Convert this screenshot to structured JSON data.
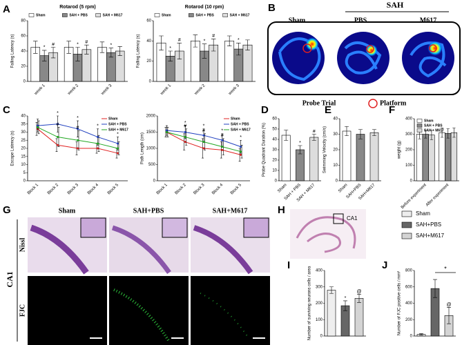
{
  "panel_labels": [
    "A",
    "B",
    "C",
    "D",
    "E",
    "F",
    "G",
    "H",
    "I",
    "J"
  ],
  "maze": {
    "group_title": "SAH",
    "groups": [
      "Sham",
      "PBS",
      "M617"
    ],
    "caption": "Probe Trial",
    "legend": "Platform"
  },
  "histology": {
    "columns": [
      "Sham",
      "SAH+PBS",
      "SAH+M617"
    ],
    "region": "CA1",
    "stains": [
      "Nissl",
      "FJC"
    ],
    "inset_label": "CA1"
  },
  "group_legend": {
    "labels": [
      "Sham",
      "SAH+PBS",
      "SAH+M617"
    ],
    "colors": [
      "#eeeeee",
      "#666666",
      "#d4d4d4"
    ]
  },
  "chart_data": [
    {
      "type": "bar",
      "title": "Rotarod (5 rpm)",
      "y_label": "Falling Latency (s)",
      "categories": [
        "week 1",
        "week 2",
        "week 3"
      ],
      "ylim": [
        0,
        80
      ],
      "yticks": [
        0,
        20,
        40,
        60,
        80
      ],
      "legend": "top",
      "rotate_labels": true,
      "series": [
        {
          "name": "Sham",
          "color": "#ffffff",
          "values": [
            45,
            45,
            45
          ],
          "errors": [
            8,
            8,
            7
          ],
          "markers": [
            null,
            null,
            null
          ]
        },
        {
          "name": "SAH + PBS",
          "color": "#888888",
          "values": [
            34,
            36,
            38
          ],
          "errors": [
            7,
            9,
            6
          ],
          "markers": [
            "*",
            "*",
            "*"
          ]
        },
        {
          "name": "SAH + M617",
          "color": "#dddddd",
          "values": [
            38,
            42,
            40
          ],
          "errors": [
            7,
            6,
            6
          ],
          "markers": [
            "#",
            "#",
            null
          ]
        }
      ]
    },
    {
      "type": "bar",
      "title": "Rotarod (10 rpm)",
      "y_label": "Falling Latency (s)",
      "categories": [
        "week 1",
        "week 2",
        "week 3"
      ],
      "ylim": [
        0,
        60
      ],
      "yticks": [
        0,
        20,
        40,
        60
      ],
      "legend": "top",
      "rotate_labels": true,
      "series": [
        {
          "name": "Sham",
          "color": "#ffffff",
          "values": [
            38,
            40,
            40
          ],
          "errors": [
            7,
            6,
            5
          ],
          "markers": [
            null,
            null,
            null
          ]
        },
        {
          "name": "SAH + PBS",
          "color": "#888888",
          "values": [
            25,
            30,
            32
          ],
          "errors": [
            5,
            7,
            6
          ],
          "markers": [
            "*",
            "*",
            "*"
          ]
        },
        {
          "name": "SAH + M617",
          "color": "#dddddd",
          "values": [
            30,
            36,
            36
          ],
          "errors": [
            8,
            6,
            5
          ],
          "markers": [
            "#",
            "#",
            null
          ]
        }
      ]
    },
    {
      "type": "line",
      "y_label": "Escape Latency (s)",
      "categories": [
        "Block 1",
        "Block 2",
        "Block 3",
        "Block 4",
        "Block 5"
      ],
      "ylim": [
        0,
        40
      ],
      "yticks": [
        0,
        5,
        10,
        15,
        20,
        25,
        30,
        35,
        40
      ],
      "legend": "top-right",
      "rotate_labels": true,
      "series": [
        {
          "name": "Sham",
          "color": "#e02020",
          "values": [
            32,
            22,
            20,
            20,
            17
          ],
          "errors": [
            4,
            4,
            4,
            3,
            3
          ],
          "markers": [
            null,
            null,
            null,
            null,
            null
          ]
        },
        {
          "name": "SAH + PBS",
          "color": "#1f3fbf",
          "values": [
            34,
            35,
            32,
            27,
            23
          ],
          "errors": [
            4,
            5,
            5,
            5,
            4
          ],
          "markers": [
            null,
            "*",
            "*",
            "*",
            "*"
          ]
        },
        {
          "name": "SAH + M617",
          "color": "#1fa61f",
          "values": [
            33,
            27,
            25,
            23,
            20
          ],
          "errors": [
            4,
            6,
            6,
            5,
            4
          ],
          "markers": [
            null,
            "#",
            "#",
            null,
            null
          ]
        }
      ]
    },
    {
      "type": "line",
      "y_label": "Path Length (cm)",
      "categories": [
        "Block 1",
        "Block 2",
        "Block 3",
        "Block 4",
        "Block 5"
      ],
      "ylim": [
        0,
        2000
      ],
      "yticks": [
        0,
        500,
        1000,
        1500,
        2000
      ],
      "legend": "top-right",
      "rotate_labels": true,
      "series": [
        {
          "name": "Sham",
          "color": "#e02020",
          "values": [
            1500,
            1200,
            1000,
            950,
            800
          ],
          "errors": [
            150,
            250,
            300,
            250,
            200
          ],
          "markers": [
            null,
            null,
            null,
            null,
            null
          ]
        },
        {
          "name": "SAH + PBS",
          "color": "#1f3fbf",
          "values": [
            1550,
            1500,
            1400,
            1250,
            1050
          ],
          "errors": [
            150,
            200,
            200,
            200,
            200
          ],
          "markers": [
            null,
            "*",
            "*",
            "*",
            "*"
          ]
        },
        {
          "name": "SAH + M617",
          "color": "#1fa61f",
          "values": [
            1500,
            1350,
            1200,
            1050,
            900
          ],
          "errors": [
            150,
            250,
            250,
            250,
            200
          ],
          "markers": [
            null,
            "#",
            "#",
            "#",
            null
          ]
        }
      ]
    },
    {
      "type": "bar",
      "y_label": "Probe Quadrant Duration (%)",
      "categories": [
        "Sham",
        "SAH + PBS",
        "SAH + M617"
      ],
      "values": [
        44,
        30,
        42
      ],
      "errors": [
        5,
        4,
        3
      ],
      "markers": [
        null,
        "*",
        "#"
      ],
      "colors": [
        "#ffffff",
        "#888888",
        "#dddddd"
      ],
      "ylim": [
        0,
        60
      ],
      "yticks": [
        0,
        10,
        20,
        30,
        40,
        50,
        60
      ],
      "rotate_labels": true
    },
    {
      "type": "bar",
      "y_label": "Swimming Velocity (cm/s)",
      "categories": [
        "Sham",
        "SAH+PBS",
        "SAH+M617"
      ],
      "values": [
        32,
        30,
        31
      ],
      "errors": [
        3,
        3,
        2
      ],
      "markers": [
        null,
        null,
        null
      ],
      "colors": [
        "#ffffff",
        "#888888",
        "#dddddd"
      ],
      "ylim": [
        0,
        40
      ],
      "yticks": [
        0,
        10,
        20,
        30,
        40
      ],
      "rotate_labels": true
    },
    {
      "type": "bar",
      "y_label": "weight (g)",
      "categories": [
        "Before experiment",
        "After experiment"
      ],
      "ylim": [
        0,
        400
      ],
      "yticks": [
        0,
        100,
        200,
        300,
        400
      ],
      "legend": "top-left",
      "rotate_labels": true,
      "series": [
        {
          "name": "Sham",
          "color": "#ffffff",
          "values": [
            300,
            310
          ],
          "errors": [
            30,
            30
          ],
          "markers": [
            null,
            null
          ]
        },
        {
          "name": "SAH + PBS",
          "color": "#888888",
          "values": [
            300,
            305
          ],
          "errors": [
            25,
            30
          ],
          "markers": [
            null,
            null
          ]
        },
        {
          "name": "SAH + M617",
          "color": "#dddddd",
          "values": [
            295,
            310
          ],
          "errors": [
            30,
            30
          ],
          "markers": [
            null,
            null
          ]
        }
      ]
    },
    {
      "type": "bar",
      "y_label": "Number of surviving neurons cells / area",
      "categories": [
        null,
        null,
        null
      ],
      "values": [
        280,
        185,
        230
      ],
      "errors": [
        20,
        30,
        25
      ],
      "markers": [
        null,
        "*",
        "@"
      ],
      "colors": [
        "#eeeeee",
        "#666666",
        "#d4d4d4"
      ],
      "ylim": [
        0,
        400
      ],
      "yticks": [
        0,
        100,
        200,
        300,
        400
      ]
    },
    {
      "type": "bar",
      "y_label": "Number of FJC positive cells / mm²",
      "categories": [
        null,
        null,
        null
      ],
      "values": [
        20,
        580,
        250
      ],
      "errors": [
        10,
        110,
        100
      ],
      "markers": [
        null,
        null,
        "@"
      ],
      "colors": [
        "#eeeeee",
        "#666666",
        "#d4d4d4"
      ],
      "ylim": [
        0,
        800
      ],
      "yticks": [
        0,
        200,
        400,
        600,
        800
      ],
      "bracket_label": "*"
    }
  ]
}
